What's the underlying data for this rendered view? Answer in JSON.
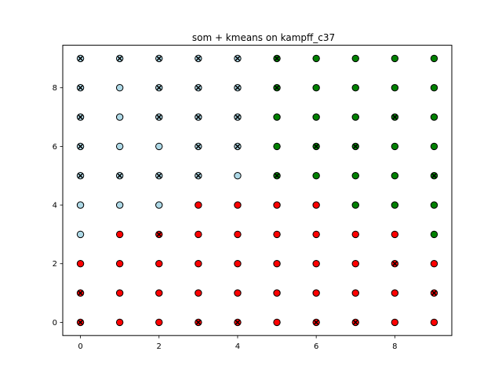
{
  "chart_data": {
    "type": "scatter",
    "title": "som + kmeans on kampff_c37",
    "xlabel": "",
    "ylabel": "",
    "xlim": [
      -0.45,
      9.45
    ],
    "ylim": [
      -0.45,
      9.45
    ],
    "xticks": [
      0,
      2,
      4,
      6,
      8
    ],
    "yticks": [
      0,
      2,
      4,
      6,
      8
    ],
    "grid": false,
    "cluster_colors": {
      "red": "#ff0000",
      "lightblue": "#add8e6",
      "green": "#008000"
    },
    "edge_color": "#000000",
    "marker_color": "#000000",
    "rows": [
      {
        "y": 9,
        "clusters": [
          "lightblue",
          "lightblue",
          "lightblue",
          "lightblue",
          "lightblue",
          "green",
          "green",
          "green",
          "green",
          "green"
        ],
        "marked": [
          0,
          1,
          2,
          3,
          4,
          5
        ]
      },
      {
        "y": 8,
        "clusters": [
          "lightblue",
          "lightblue",
          "lightblue",
          "lightblue",
          "lightblue",
          "green",
          "green",
          "green",
          "green",
          "green"
        ],
        "marked": [
          0,
          2,
          3,
          4,
          5
        ]
      },
      {
        "y": 7,
        "clusters": [
          "lightblue",
          "lightblue",
          "lightblue",
          "lightblue",
          "lightblue",
          "green",
          "green",
          "green",
          "green",
          "green"
        ],
        "marked": [
          0,
          2,
          3,
          4,
          8
        ]
      },
      {
        "y": 6,
        "clusters": [
          "lightblue",
          "lightblue",
          "lightblue",
          "lightblue",
          "lightblue",
          "green",
          "green",
          "green",
          "green",
          "green"
        ],
        "marked": [
          0,
          3,
          4,
          6,
          7
        ]
      },
      {
        "y": 5,
        "clusters": [
          "lightblue",
          "lightblue",
          "lightblue",
          "lightblue",
          "lightblue",
          "green",
          "green",
          "green",
          "green",
          "green"
        ],
        "marked": [
          0,
          1,
          2,
          3,
          5,
          9
        ]
      },
      {
        "y": 4,
        "clusters": [
          "lightblue",
          "lightblue",
          "lightblue",
          "red",
          "red",
          "red",
          "red",
          "green",
          "green",
          "green"
        ],
        "marked": []
      },
      {
        "y": 3,
        "clusters": [
          "lightblue",
          "red",
          "red",
          "red",
          "red",
          "red",
          "red",
          "red",
          "red",
          "green"
        ],
        "marked": [
          2
        ]
      },
      {
        "y": 2,
        "clusters": [
          "red",
          "red",
          "red",
          "red",
          "red",
          "red",
          "red",
          "red",
          "red",
          "red"
        ],
        "marked": [
          8
        ]
      },
      {
        "y": 1,
        "clusters": [
          "red",
          "red",
          "red",
          "red",
          "red",
          "red",
          "red",
          "red",
          "red",
          "red"
        ],
        "marked": [
          0,
          9
        ]
      },
      {
        "y": 0,
        "clusters": [
          "red",
          "red",
          "red",
          "red",
          "red",
          "red",
          "red",
          "red",
          "red",
          "red"
        ],
        "marked": [
          0,
          3,
          4,
          6,
          7
        ]
      }
    ]
  }
}
